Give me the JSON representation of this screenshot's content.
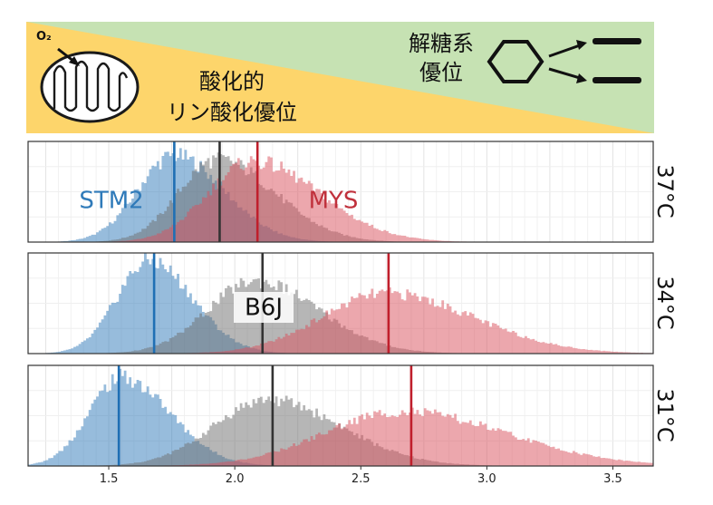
{
  "banner": {
    "o2_label": "O₂",
    "left_label_line1": "酸化的",
    "left_label_line2": "リン酸化優位",
    "right_label_line1": "解糖系",
    "right_label_line2": "優位",
    "colors": {
      "yellow": "#fdd56b",
      "green": "#c6e2b3"
    },
    "icons": [
      "mitochondrion-icon",
      "o2-arrow-icon",
      "hexagon-icon",
      "split-arrows-icon",
      "product-bars-icon"
    ]
  },
  "chart_data": {
    "type": "histogram",
    "x_ticks": [
      "1.5",
      "2.0",
      "2.5",
      "3.0",
      "3.5"
    ],
    "xlim": [
      1.18,
      3.66
    ],
    "series": [
      {
        "key": "stm2",
        "name": "STM2",
        "color": "#2f7ab9",
        "line_color": "#1f6fb4"
      },
      {
        "key": "b6j",
        "name": "B6J",
        "color": "#6e6e6e",
        "line_color": "#333333"
      },
      {
        "key": "mys",
        "name": "MYS",
        "color": "#d9505b",
        "line_color": "#c01f2c"
      }
    ],
    "panels": [
      {
        "temperature": "37°C",
        "labels": [
          "STM2",
          "MYS"
        ],
        "distributions": [
          {
            "series": "stm2",
            "mean": 1.76,
            "sd": 0.17,
            "skew": 0.15,
            "peak": 0.86,
            "median_line": 1.76
          },
          {
            "series": "b6j",
            "mean": 1.93,
            "sd": 0.19,
            "skew": 0.2,
            "peak": 0.82,
            "median_line": 1.94
          },
          {
            "series": "mys",
            "mean": 2.07,
            "sd": 0.22,
            "skew": 0.2,
            "peak": 0.8,
            "median_line": 2.09
          }
        ]
      },
      {
        "temperature": "34°C",
        "labels": [
          "B6J"
        ],
        "distributions": [
          {
            "series": "stm2",
            "mean": 1.66,
            "sd": 0.15,
            "skew": 0.15,
            "peak": 0.92,
            "median_line": 1.68
          },
          {
            "series": "b6j",
            "mean": 2.08,
            "sd": 0.22,
            "skew": 0.15,
            "peak": 0.72,
            "median_line": 2.11
          },
          {
            "series": "mys",
            "mean": 2.6,
            "sd": 0.3,
            "skew": 0.15,
            "peak": 0.6,
            "median_line": 2.61
          }
        ]
      },
      {
        "temperature": "31°C",
        "labels": [],
        "distributions": [
          {
            "series": "stm2",
            "mean": 1.55,
            "sd": 0.16,
            "skew": 0.2,
            "peak": 0.88,
            "median_line": 1.54
          },
          {
            "series": "b6j",
            "mean": 2.13,
            "sd": 0.25,
            "skew": 0.15,
            "peak": 0.66,
            "median_line": 2.15
          },
          {
            "series": "mys",
            "mean": 2.66,
            "sd": 0.36,
            "skew": 0.15,
            "peak": 0.54,
            "median_line": 2.7
          }
        ]
      }
    ]
  }
}
